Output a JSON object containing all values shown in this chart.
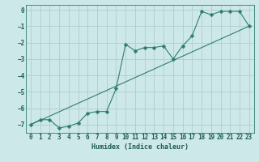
{
  "title": "",
  "xlabel": "Humidex (Indice chaleur)",
  "bg_color": "#cde8e8",
  "grid_color": "#b0cccc",
  "line_color": "#2e7d6e",
  "xlim": [
    -0.5,
    23.5
  ],
  "ylim": [
    -7.5,
    0.3
  ],
  "xticks": [
    0,
    1,
    2,
    3,
    4,
    5,
    6,
    7,
    8,
    9,
    10,
    11,
    12,
    13,
    14,
    15,
    16,
    17,
    18,
    19,
    20,
    21,
    22,
    23
  ],
  "yticks": [
    0,
    -1,
    -2,
    -3,
    -4,
    -5,
    -6,
    -7
  ],
  "line1_x": [
    0,
    1,
    2,
    3,
    4,
    5,
    6,
    7,
    8,
    9,
    10,
    11,
    12,
    13,
    14,
    15,
    16,
    17,
    18,
    19,
    20,
    21,
    22,
    23
  ],
  "line1_y": [
    -7.0,
    -6.7,
    -6.7,
    -7.2,
    -7.1,
    -6.9,
    -6.3,
    -6.2,
    -6.2,
    -4.8,
    -2.1,
    -2.5,
    -2.3,
    -2.3,
    -2.2,
    -3.0,
    -2.2,
    -1.6,
    -0.1,
    -0.3,
    -0.1,
    -0.1,
    -0.1,
    -1.0
  ],
  "line2_x": [
    0,
    23
  ],
  "line2_y": [
    -7.0,
    -1.0
  ],
  "markersize": 2.5,
  "xlabel_fontsize": 6,
  "tick_fontsize": 5.5
}
